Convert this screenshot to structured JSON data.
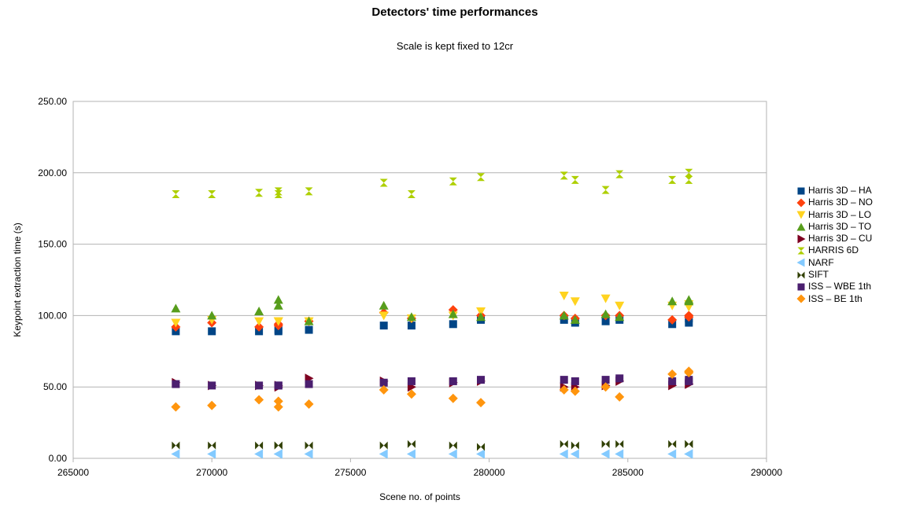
{
  "chart_data": {
    "type": "scatter",
    "title": "Detectors' time performances",
    "subtitle": "Scale is kept fixed to 12cr",
    "xlabel": "Scene no. of points",
    "ylabel": "Keypoint extraction time (s)",
    "xlim": [
      265000,
      290000
    ],
    "ylim": [
      0,
      250
    ],
    "x_ticks": [
      "265000",
      "270000",
      "275000",
      "280000",
      "285000",
      "290000"
    ],
    "y_ticks": [
      "0.00",
      "50.00",
      "100.00",
      "150.00",
      "200.00",
      "250.00"
    ],
    "grid": "horizontal",
    "legend_position": "right",
    "x": [
      268700,
      270000,
      271700,
      272400,
      272400,
      273500,
      276200,
      277200,
      278700,
      279700,
      282700,
      283100,
      284200,
      284700,
      286600,
      287200,
      287200
    ],
    "series": [
      {
        "name": "Harris 3D – HA",
        "marker": "square",
        "color": "#004586",
        "values": [
          89,
          89,
          89,
          89,
          90,
          90,
          93,
          93,
          94,
          97,
          97,
          95,
          96,
          97,
          94,
          98,
          95
        ]
      },
      {
        "name": "Harris 3D – NO",
        "marker": "diamond",
        "color": "#ff420e",
        "values": [
          92,
          95,
          92,
          93,
          94,
          96,
          102,
          98,
          104,
          100,
          100,
          98,
          100,
          100,
          97,
          100,
          99
        ]
      },
      {
        "name": "Harris 3D – LO",
        "marker": "triangle-down",
        "color": "#ffd320",
        "values": [
          95,
          97,
          96,
          96,
          96,
          96,
          100,
          98,
          100,
          103,
          114,
          110,
          112,
          107,
          107,
          108,
          106
        ]
      },
      {
        "name": "Harris 3D – TO",
        "marker": "triangle-up",
        "color": "#579d1c",
        "values": [
          105,
          100,
          103,
          111,
          107,
          96,
          107,
          99,
          101,
          99,
          100,
          97,
          101,
          99,
          110,
          111,
          110
        ]
      },
      {
        "name": "Harris 3D – CU",
        "marker": "triangle-right",
        "color": "#7e0021",
        "values": [
          53,
          51,
          51,
          50,
          51,
          56,
          54,
          50,
          53,
          54,
          50,
          50,
          51,
          54,
          51,
          52,
          52
        ]
      },
      {
        "name": "HARRIS 6D",
        "marker": "hourglass",
        "color": "#aecf00",
        "values": [
          185,
          185,
          186,
          187,
          185,
          187,
          193,
          185,
          194,
          197,
          198,
          195,
          188,
          199,
          195,
          200,
          195
        ]
      },
      {
        "name": "NARF",
        "marker": "triangle-left",
        "color": "#83caff",
        "values": [
          3,
          3,
          3,
          3,
          3,
          3,
          3,
          3,
          3,
          3,
          3,
          3,
          3,
          3,
          3,
          3,
          3
        ]
      },
      {
        "name": "SIFT",
        "marker": "bowtie",
        "color": "#314004",
        "values": [
          9,
          9,
          9,
          9,
          9,
          9,
          9,
          10,
          9,
          8,
          10,
          9,
          10,
          10,
          10,
          10,
          10
        ]
      },
      {
        "name": "ISS – WBE 1th",
        "marker": "square",
        "color": "#4b1f6f",
        "values": [
          52,
          51,
          51,
          51,
          51,
          52,
          53,
          54,
          54,
          55,
          55,
          54,
          55,
          56,
          54,
          54,
          55
        ]
      },
      {
        "name": "ISS – BE 1th",
        "marker": "diamond",
        "color": "#ff950e",
        "values": [
          36,
          37,
          41,
          36,
          40,
          38,
          48,
          45,
          42,
          39,
          48,
          47,
          50,
          43,
          59,
          60,
          61
        ]
      }
    ]
  }
}
